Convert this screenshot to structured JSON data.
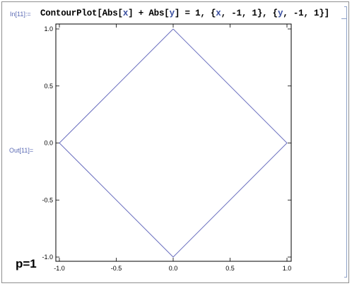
{
  "notebook": {
    "in_label": "In[11]:=",
    "out_label": "Out[11]=",
    "input_parts": [
      {
        "text": "ContourPlot[Abs[",
        "symbol": false
      },
      {
        "text": "x",
        "symbol": true
      },
      {
        "text": "] + Abs[",
        "symbol": false
      },
      {
        "text": "y",
        "symbol": true
      },
      {
        "text": "] = 1, {",
        "symbol": false
      },
      {
        "text": "x",
        "symbol": true
      },
      {
        "text": ", -1, 1}, {",
        "symbol": false
      },
      {
        "text": "y",
        "symbol": true
      },
      {
        "text": ", -1, 1}]",
        "symbol": false
      }
    ],
    "annotation": "p=1"
  },
  "chart_data": {
    "type": "line",
    "title": "",
    "xlabel": "",
    "ylabel": "",
    "xlim": [
      -1,
      1
    ],
    "ylim": [
      -1,
      1
    ],
    "grid": false,
    "series": [
      {
        "x": [
          0,
          1,
          0,
          -1,
          0
        ],
        "y": [
          1,
          0,
          -1,
          0,
          1
        ]
      }
    ],
    "x_ticks": [
      {
        "value": -1.0,
        "label": "-1.0"
      },
      {
        "value": -0.5,
        "label": "-0.5"
      },
      {
        "value": 0.0,
        "label": "0.0"
      },
      {
        "value": 0.5,
        "label": "0.5"
      },
      {
        "value": 1.0,
        "label": "1.0"
      }
    ],
    "y_ticks": [
      {
        "value": 1.0,
        "label": "1.0"
      },
      {
        "value": 0.5,
        "label": "0.5"
      },
      {
        "value": 0.0,
        "label": "0.0"
      },
      {
        "value": -0.5,
        "label": "-0.5"
      },
      {
        "value": -1.0,
        "label": "-1.0"
      }
    ],
    "colors": {
      "contour": "#6a6fbf",
      "frame": "#000000",
      "label": "#000000"
    }
  }
}
